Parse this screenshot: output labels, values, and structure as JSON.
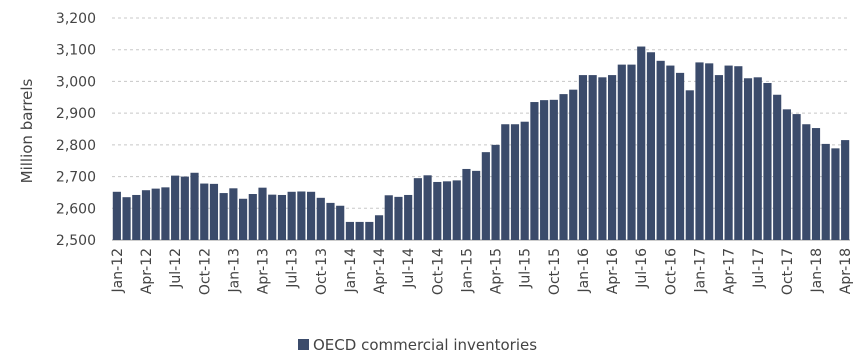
{
  "chart_data": {
    "type": "bar",
    "title": "",
    "xlabel": "",
    "ylabel": "Million barrels",
    "ylim": [
      2500,
      3200
    ],
    "yticks": [
      2500,
      2600,
      2700,
      2800,
      2900,
      3000,
      3100,
      3200
    ],
    "ytick_labels": [
      "2,500",
      "2,600",
      "2,700",
      "2,800",
      "2,900",
      "3,000",
      "3,100",
      "3,200"
    ],
    "grid": true,
    "legend_position": "bottom-center",
    "bar_color": "#3b4b6b",
    "categories": [
      "Jan-12",
      "Feb-12",
      "Mar-12",
      "Apr-12",
      "May-12",
      "Jun-12",
      "Jul-12",
      "Aug-12",
      "Sep-12",
      "Oct-12",
      "Nov-12",
      "Dec-12",
      "Jan-13",
      "Feb-13",
      "Mar-13",
      "Apr-13",
      "May-13",
      "Jun-13",
      "Jul-13",
      "Aug-13",
      "Sep-13",
      "Oct-13",
      "Nov-13",
      "Dec-13",
      "Jan-14",
      "Feb-14",
      "Mar-14",
      "Apr-14",
      "May-14",
      "Jun-14",
      "Jul-14",
      "Aug-14",
      "Sep-14",
      "Oct-14",
      "Nov-14",
      "Dec-14",
      "Jan-15",
      "Feb-15",
      "Mar-15",
      "Apr-15",
      "May-15",
      "Jun-15",
      "Jul-15",
      "Aug-15",
      "Sep-15",
      "Oct-15",
      "Nov-15",
      "Dec-15",
      "Jan-16",
      "Feb-16",
      "Mar-16",
      "Apr-16",
      "May-16",
      "Jun-16",
      "Jul-16",
      "Aug-16",
      "Sep-16",
      "Oct-16",
      "Nov-16",
      "Dec-16",
      "Jan-17",
      "Feb-17",
      "Mar-17",
      "Apr-17",
      "May-17",
      "Jun-17",
      "Jul-17",
      "Aug-17",
      "Sep-17",
      "Oct-17",
      "Nov-17",
      "Dec-17",
      "Jan-18",
      "Feb-18",
      "Mar-18",
      "Apr-18"
    ],
    "xtick_labels": [
      "Jan-12",
      "Apr-12",
      "Jul-12",
      "Oct-12",
      "Jan-13",
      "Apr-13",
      "Jul-13",
      "Oct-13",
      "Jan-14",
      "Apr-14",
      "Jul-14",
      "Oct-14",
      "Jan-15",
      "Apr-15",
      "Jul-15",
      "Oct-15",
      "Jan-16",
      "Apr-16",
      "Jul-16",
      "Oct-16",
      "Jan-17",
      "Apr-17",
      "Jul-17",
      "Oct-17",
      "Jan-18",
      "Apr-18"
    ],
    "series": [
      {
        "name": "OECD commercial inventories",
        "values": [
          2652,
          2635,
          2642,
          2657,
          2662,
          2666,
          2703,
          2700,
          2712,
          2678,
          2677,
          2648,
          2663,
          2630,
          2645,
          2665,
          2643,
          2642,
          2652,
          2653,
          2652,
          2633,
          2617,
          2608,
          2557,
          2557,
          2557,
          2578,
          2641,
          2636,
          2642,
          2695,
          2704,
          2683,
          2685,
          2688,
          2724,
          2718,
          2777,
          2800,
          2865,
          2865,
          2873,
          2935,
          2941,
          2942,
          2960,
          2974,
          3020,
          3020,
          3013,
          3020,
          3053,
          3053,
          3110,
          3092,
          3065,
          3050,
          3027,
          2972,
          3060,
          3057,
          3020,
          3050,
          3048,
          3010,
          3013,
          2995,
          2958,
          2912,
          2897,
          2865,
          2853,
          2803,
          2789,
          2815
        ]
      }
    ]
  }
}
